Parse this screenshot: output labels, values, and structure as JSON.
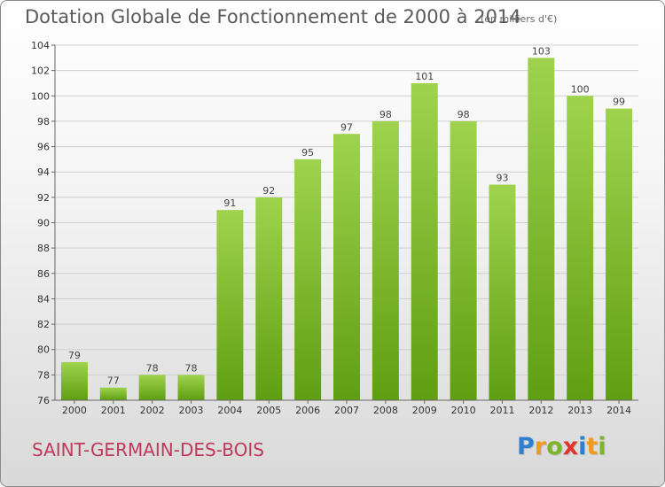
{
  "title": "Dotation Globale de Fonctionnement de 2000 à 2014",
  "unit_note": "(en milliers d'€)",
  "commune": "SAINT-GERMAIN-DES-BOIS",
  "logo": {
    "text": "Proxiti",
    "letters": [
      {
        "char": "P",
        "color": "#2e7fd0"
      },
      {
        "char": "r",
        "color": "#f39a1e"
      },
      {
        "char": "o",
        "color": "#7ab52a"
      },
      {
        "char": "x",
        "color": "#e2332c"
      },
      {
        "char": "i",
        "color": "#2e7fd0"
      },
      {
        "char": "t",
        "color": "#f39a1e"
      },
      {
        "char": "i",
        "color": "#7ab52a"
      }
    ]
  },
  "colors": {
    "bar_top": "#9fd34e",
    "bar_bottom": "#5f9e12",
    "grid": "#cfcfcf",
    "axis_text": "#333333"
  },
  "chart_data": {
    "type": "bar",
    "title": "Dotation Globale de Fonctionnement de 2000 à 2014",
    "xlabel": "",
    "ylabel": "",
    "categories": [
      "2000",
      "2001",
      "2002",
      "2003",
      "2004",
      "2005",
      "2006",
      "2007",
      "2008",
      "2009",
      "2010",
      "2011",
      "2012",
      "2013",
      "2014"
    ],
    "values": [
      79,
      77,
      78,
      78,
      91,
      92,
      95,
      97,
      98,
      101,
      98,
      93,
      103,
      100,
      99
    ],
    "ylim": [
      76,
      104
    ],
    "yticks": [
      76,
      78,
      80,
      82,
      84,
      86,
      88,
      90,
      92,
      94,
      96,
      98,
      100,
      102,
      104
    ],
    "grid": true,
    "data_labels": true
  }
}
